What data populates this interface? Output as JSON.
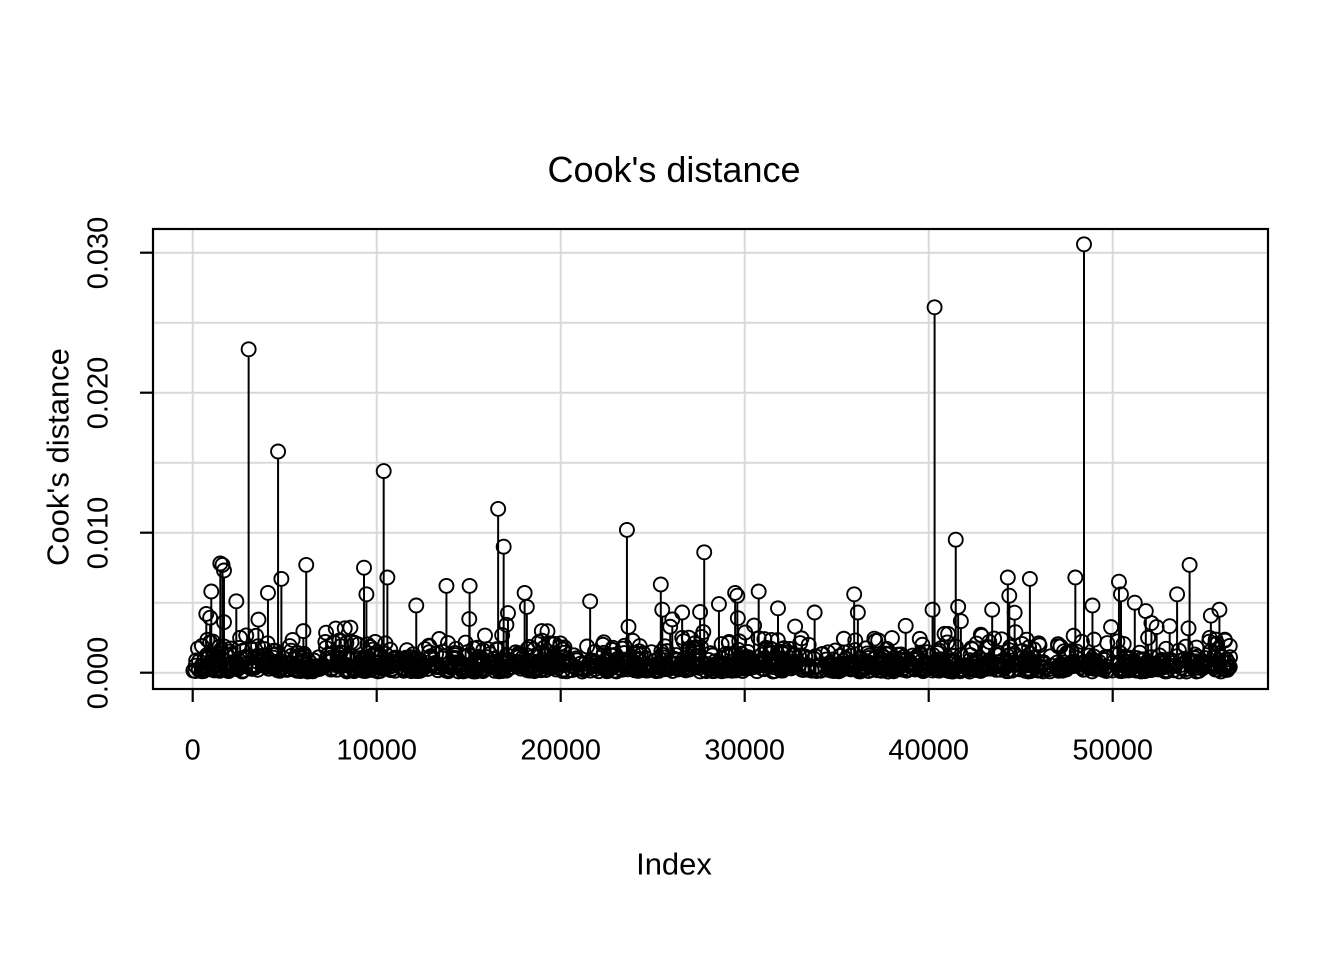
{
  "title": "Cook's distance",
  "axes": {
    "x": {
      "label": "Index",
      "ticks": [
        0,
        10000,
        20000,
        30000,
        40000,
        50000
      ],
      "tick_labels": [
        "0",
        "10000",
        "20000",
        "30000",
        "40000",
        "50000"
      ]
    },
    "y": {
      "label": "Cook's distance",
      "ticks": [
        0,
        0.01,
        0.02,
        0.03
      ],
      "tick_labels": [
        "0.000",
        "0.010",
        "0.020",
        "0.030"
      ],
      "minor_step": 0.005,
      "minor_max": 0.03
    }
  },
  "colors": {
    "ink": "#000000",
    "background": "#ffffff",
    "grid": "#d9d9d9"
  },
  "chart_data": {
    "type": "scatter",
    "style": "vertical-stem-with-open-circle",
    "title": "Cook's distance",
    "xlabel": "Index",
    "ylabel": "Cook's distance",
    "xlim": [
      -2200,
      58600
    ],
    "ylim": [
      -0.0011,
      0.0317
    ],
    "grid": "gray major gridlines at x ticks; horizontal gridlines every 0.005",
    "legend": "none",
    "n_points_approx": 56400,
    "max_point": [
      48440,
      0.0306
    ],
    "outliers": [
      [
        740,
        0.0042
      ],
      [
        1010,
        0.0058
      ],
      [
        1500,
        0.0078
      ],
      [
        1620,
        0.0077
      ],
      [
        1700,
        0.0073
      ],
      [
        2370,
        0.0051
      ],
      [
        3040,
        0.0231
      ],
      [
        4090,
        0.0057
      ],
      [
        4640,
        0.0158
      ],
      [
        4820,
        0.0067
      ],
      [
        6170,
        0.0077
      ],
      [
        9310,
        0.0075
      ],
      [
        9440,
        0.0056
      ],
      [
        10380,
        0.0144
      ],
      [
        10580,
        0.0068
      ],
      [
        12150,
        0.0048
      ],
      [
        13790,
        0.0062
      ],
      [
        15050,
        0.0062
      ],
      [
        16600,
        0.0117
      ],
      [
        16900,
        0.009
      ],
      [
        18040,
        0.0057
      ],
      [
        18160,
        0.0047
      ],
      [
        21600,
        0.0051
      ],
      [
        23600,
        0.0102
      ],
      [
        25440,
        0.0063
      ],
      [
        25520,
        0.0045
      ],
      [
        26600,
        0.0043
      ],
      [
        27800,
        0.0086
      ],
      [
        28600,
        0.0049
      ],
      [
        29480,
        0.0057
      ],
      [
        29600,
        0.0055
      ],
      [
        30760,
        0.0058
      ],
      [
        31810,
        0.0046
      ],
      [
        33800,
        0.0043
      ],
      [
        35950,
        0.0056
      ],
      [
        36150,
        0.0043
      ],
      [
        40210,
        0.0045
      ],
      [
        40320,
        0.0261
      ],
      [
        41470,
        0.0095
      ],
      [
        41600,
        0.0047
      ],
      [
        43450,
        0.0045
      ],
      [
        44300,
        0.0068
      ],
      [
        44380,
        0.0055
      ],
      [
        45500,
        0.0067
      ],
      [
        47970,
        0.0068
      ],
      [
        48440,
        0.0306
      ],
      [
        48900,
        0.0048
      ],
      [
        50340,
        0.0065
      ],
      [
        50450,
        0.0056
      ],
      [
        51200,
        0.005
      ],
      [
        51800,
        0.0044
      ],
      [
        53500,
        0.0056
      ],
      [
        54180,
        0.0077
      ],
      [
        55800,
        0.0045
      ]
    ],
    "background_points": {
      "count": 1400,
      "x_min": 30,
      "x_max": 56400,
      "y_base": 8e-05,
      "y_exp_scale": 0.00075,
      "y_cap": 0.0046,
      "seed": 20240613
    }
  }
}
